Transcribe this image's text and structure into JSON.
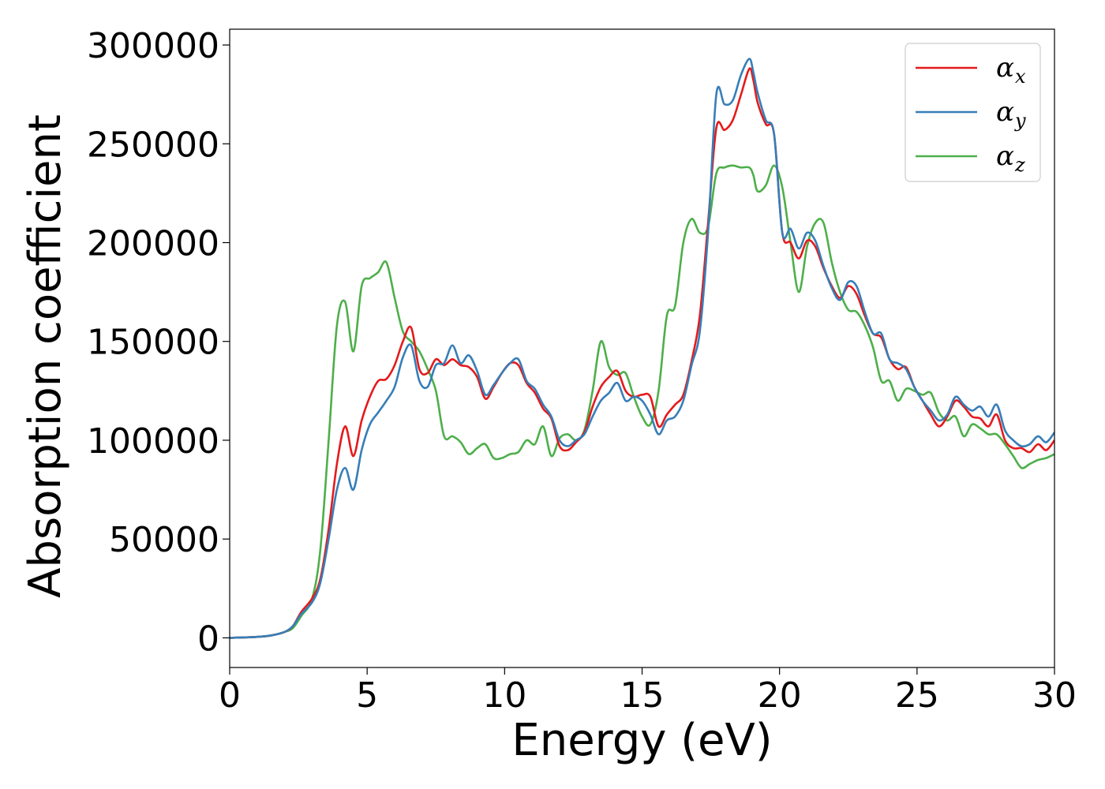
{
  "chart_data": {
    "type": "line",
    "xlabel": "Energy (eV)",
    "ylabel": "Absorption coefficient",
    "xlim": [
      0,
      30
    ],
    "ylim": [
      -15000,
      308000
    ],
    "x_ticks": [
      0,
      5,
      10,
      15,
      20,
      25,
      30
    ],
    "y_ticks": [
      0,
      50000,
      100000,
      150000,
      200000,
      250000,
      300000
    ],
    "grid": false,
    "legend_position": "top-right",
    "x": [
      0,
      1,
      1.5,
      2,
      2.3,
      2.6,
      3,
      3.3,
      3.6,
      3.9,
      4.2,
      4.5,
      4.8,
      5.1,
      5.4,
      5.7,
      6,
      6.3,
      6.6,
      6.9,
      7.2,
      7.5,
      7.8,
      8.1,
      8.4,
      8.7,
      9,
      9.3,
      9.6,
      9.9,
      10.2,
      10.5,
      10.8,
      11.1,
      11.4,
      11.7,
      12,
      12.3,
      12.6,
      12.9,
      13.2,
      13.5,
      13.8,
      14.1,
      14.4,
      14.7,
      15,
      15.3,
      15.6,
      15.9,
      16.2,
      16.5,
      16.8,
      17.1,
      17.4,
      17.7,
      18,
      18.3,
      18.6,
      18.9,
      19.05,
      19.2,
      19.5,
      19.8,
      20.1,
      20.4,
      20.7,
      21,
      21.3,
      21.6,
      21.9,
      22.2,
      22.5,
      22.8,
      23.1,
      23.4,
      23.7,
      24,
      24.3,
      24.6,
      24.9,
      25.2,
      25.5,
      25.8,
      26.1,
      26.4,
      26.7,
      27,
      27.3,
      27.6,
      27.9,
      28.2,
      28.5,
      28.8,
      29.1,
      29.4,
      29.7,
      30
    ],
    "series": [
      {
        "name": "α_x",
        "label_main": "α",
        "label_sub": "x",
        "color": "#e41a1c",
        "values": [
          0,
          500,
          1200,
          3000,
          6000,
          13000,
          20000,
          30000,
          55000,
          88000,
          107000,
          92000,
          110000,
          122000,
          130000,
          131000,
          138000,
          150000,
          157000,
          136000,
          134000,
          141000,
          138000,
          141000,
          138000,
          137000,
          132000,
          121000,
          127000,
          134000,
          139000,
          138000,
          129000,
          124000,
          116000,
          111000,
          97000,
          95000,
          99000,
          104000,
          117000,
          127000,
          132000,
          135000,
          125000,
          122000,
          123000,
          122000,
          107000,
          113000,
          118000,
          123000,
          140000,
          163000,
          210000,
          258000,
          257000,
          262000,
          275000,
          288000,
          282000,
          271000,
          260000,
          255000,
          205000,
          200000,
          192000,
          201000,
          198000,
          187000,
          178000,
          172000,
          178000,
          174000,
          163000,
          154000,
          152000,
          141000,
          136000,
          137000,
          127000,
          120000,
          113000,
          107000,
          112000,
          120000,
          117000,
          112000,
          111000,
          107000,
          113000,
          100000,
          96000,
          96000,
          94000,
          98000,
          95000,
          100000
        ]
      },
      {
        "name": "α_y",
        "label_main": "α",
        "label_sub": "y",
        "color": "#377eb8",
        "values": [
          0,
          500,
          1200,
          3000,
          6000,
          12000,
          18000,
          28000,
          50000,
          75000,
          86000,
          75000,
          95000,
          108000,
          114000,
          120000,
          127000,
          142000,
          148000,
          130000,
          127000,
          138000,
          139000,
          148000,
          139000,
          143000,
          135000,
          123000,
          128000,
          134000,
          139000,
          141000,
          130000,
          126000,
          118000,
          112000,
          100000,
          97000,
          100000,
          103000,
          112000,
          120000,
          124000,
          129000,
          120000,
          122000,
          120000,
          113000,
          103000,
          110000,
          112000,
          120000,
          138000,
          155000,
          205000,
          275000,
          270000,
          272000,
          285000,
          293000,
          286000,
          276000,
          262000,
          255000,
          205000,
          207000,
          197000,
          205000,
          201000,
          188000,
          177000,
          171000,
          180000,
          178000,
          165000,
          154000,
          154000,
          141000,
          139000,
          136000,
          127000,
          120000,
          115000,
          110000,
          113000,
          122000,
          118000,
          115000,
          117000,
          112000,
          118000,
          105000,
          100000,
          97000,
          98000,
          102000,
          99000,
          104000
        ]
      },
      {
        "name": "α_z",
        "label_main": "α",
        "label_sub": "z",
        "color": "#4daf4a",
        "values": [
          0,
          500,
          1200,
          3000,
          5000,
          11000,
          20000,
          45000,
          100000,
          158000,
          170000,
          145000,
          178000,
          182000,
          185000,
          190000,
          172000,
          155000,
          150000,
          145000,
          136000,
          125000,
          102000,
          102000,
          99000,
          93000,
          96000,
          98000,
          91000,
          91000,
          93000,
          94000,
          100000,
          98000,
          107000,
          92000,
          101000,
          103000,
          100000,
          105000,
          125000,
          150000,
          137000,
          133000,
          134000,
          122000,
          112000,
          108000,
          125000,
          163000,
          168000,
          200000,
          212000,
          205000,
          208000,
          235000,
          238000,
          239000,
          238000,
          238000,
          234000,
          226000,
          229000,
          239000,
          228000,
          200000,
          175000,
          198000,
          210000,
          210000,
          190000,
          175000,
          166000,
          165000,
          158000,
          147000,
          130000,
          130000,
          120000,
          126000,
          125000,
          123000,
          124000,
          114000,
          110000,
          112000,
          102000,
          108000,
          106000,
          103000,
          103000,
          98000,
          92000,
          86000,
          88000,
          90000,
          91000,
          93000
        ]
      }
    ]
  }
}
